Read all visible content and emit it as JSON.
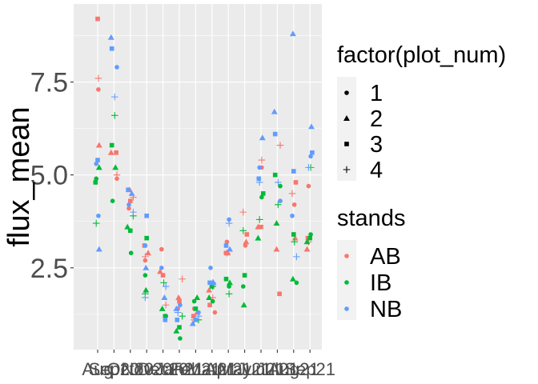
{
  "chart_data": {
    "type": "scatter",
    "ylabel": "flux_mean",
    "ylim": [
      0.3,
      9.6
    ],
    "yticks": [
      2.5,
      5.0,
      7.5
    ],
    "ytick_labels": [
      "2.5",
      "5.0",
      "7.5"
    ],
    "xticks": [
      "Aug-20",
      "Sep-20",
      "Oct-20",
      "Nov-20",
      "Dec-20",
      "Jan-21",
      "Feb-21",
      "Mar-21",
      "Apr-21",
      "May-21",
      "Jun-21",
      "Jul-21",
      "Aug-21",
      "Sep-21"
    ],
    "xtick_labels": [
      "Aug",
      "Sep20",
      "Oct20",
      "Nov20",
      "Dec20",
      "Jan21",
      "Feb21",
      "Mar21",
      "Apr21",
      "May21",
      "Jun21",
      "Jul21",
      "Aug21",
      "Sep21"
    ],
    "grid": true,
    "background": "#ebebeb",
    "legends": [
      {
        "title": "factor(plot_num)",
        "entries": [
          {
            "label": "1",
            "shape": "circle"
          },
          {
            "label": "2",
            "shape": "triangle"
          },
          {
            "label": "3",
            "shape": "square"
          },
          {
            "label": "4",
            "shape": "plus"
          }
        ]
      },
      {
        "title": "stands",
        "entries": [
          {
            "label": "AB",
            "color": "#f8766d"
          },
          {
            "label": "IB",
            "color": "#00ba38"
          },
          {
            "label": "NB",
            "color": "#619cff"
          }
        ]
      }
    ],
    "series": [
      {
        "name": "AB",
        "color": "#f8766d",
        "points": [
          {
            "x": 0,
            "y": 9.2,
            "plot": 3
          },
          {
            "x": 0,
            "y": 7.6,
            "plot": 4
          },
          {
            "x": 0,
            "y": 7.3,
            "plot": 1
          },
          {
            "x": 0,
            "y": 5.8,
            "plot": 2
          },
          {
            "x": 1,
            "y": 5.6,
            "plot": 3
          },
          {
            "x": 1,
            "y": 5.0,
            "plot": 4
          },
          {
            "x": 1,
            "y": 4.9,
            "plot": 1
          },
          {
            "x": 1,
            "y": 5.6,
            "plot": 2
          },
          {
            "x": 2,
            "y": 4.4,
            "plot": 4
          },
          {
            "x": 2,
            "y": 4.3,
            "plot": 3
          },
          {
            "x": 2,
            "y": 4.1,
            "plot": 1
          },
          {
            "x": 2,
            "y": 4.6,
            "plot": 2
          },
          {
            "x": 3,
            "y": 2.8,
            "plot": 4
          },
          {
            "x": 3,
            "y": 2.7,
            "plot": 1
          },
          {
            "x": 3,
            "y": 3.1,
            "plot": 3
          },
          {
            "x": 3,
            "y": 2.9,
            "plot": 2
          },
          {
            "x": 4,
            "y": 3.0,
            "plot": 1
          },
          {
            "x": 4,
            "y": 1.5,
            "plot": 4
          },
          {
            "x": 4,
            "y": 2.3,
            "plot": 3
          },
          {
            "x": 4,
            "y": 2.4,
            "plot": 2
          },
          {
            "x": 5,
            "y": 2.2,
            "plot": 4
          },
          {
            "x": 5,
            "y": 1.6,
            "plot": 3
          },
          {
            "x": 5,
            "y": 1.4,
            "plot": 1
          },
          {
            "x": 5,
            "y": 1.7,
            "plot": 2
          },
          {
            "x": 6,
            "y": 1.1,
            "plot": 4
          },
          {
            "x": 6,
            "y": 1.4,
            "plot": 1
          },
          {
            "x": 6,
            "y": 1.2,
            "plot": 3
          },
          {
            "x": 6,
            "y": 1.3,
            "plot": 2
          },
          {
            "x": 7,
            "y": 1.7,
            "plot": 4
          },
          {
            "x": 7,
            "y": 1.5,
            "plot": 3
          },
          {
            "x": 7,
            "y": 1.3,
            "plot": 1
          },
          {
            "x": 7,
            "y": 1.9,
            "plot": 2
          },
          {
            "x": 8,
            "y": 2.9,
            "plot": 3
          },
          {
            "x": 8,
            "y": 2.9,
            "plot": 4
          },
          {
            "x": 8,
            "y": 3.2,
            "plot": 1
          },
          {
            "x": 8,
            "y": 2.9,
            "plot": 2
          },
          {
            "x": 9,
            "y": 4.0,
            "plot": 4
          },
          {
            "x": 9,
            "y": 3.4,
            "plot": 3
          },
          {
            "x": 9,
            "y": 3.1,
            "plot": 1
          },
          {
            "x": 9,
            "y": 3.2,
            "plot": 2
          },
          {
            "x": 10,
            "y": 5.4,
            "plot": 4
          },
          {
            "x": 10,
            "y": 5.2,
            "plot": 1
          },
          {
            "x": 10,
            "y": 3.6,
            "plot": 3
          },
          {
            "x": 10,
            "y": 3.6,
            "plot": 2
          },
          {
            "x": 11,
            "y": 5.8,
            "plot": 4
          },
          {
            "x": 11,
            "y": 4.3,
            "plot": 1
          },
          {
            "x": 11,
            "y": 1.8,
            "plot": 3
          },
          {
            "x": 11,
            "y": 3.0,
            "plot": 2
          },
          {
            "x": 12,
            "y": 4.5,
            "plot": 4
          },
          {
            "x": 12,
            "y": 4.8,
            "plot": 3
          },
          {
            "x": 12,
            "y": 4.2,
            "plot": 1
          },
          {
            "x": 12,
            "y": 3.3,
            "plot": 2
          },
          {
            "x": 13,
            "y": 4.7,
            "plot": 1
          },
          {
            "x": 13,
            "y": 3.3,
            "plot": 3
          },
          {
            "x": 13,
            "y": 3.2,
            "plot": 4
          },
          {
            "x": 13,
            "y": 3.0,
            "plot": 2
          }
        ]
      },
      {
        "name": "IB",
        "color": "#00ba38",
        "points": [
          {
            "x": 0,
            "y": 5.2,
            "plot": 2
          },
          {
            "x": 0,
            "y": 4.9,
            "plot": 1
          },
          {
            "x": 0,
            "y": 4.8,
            "plot": 3
          },
          {
            "x": 0,
            "y": 3.7,
            "plot": 4
          },
          {
            "x": 1,
            "y": 6.6,
            "plot": 4
          },
          {
            "x": 1,
            "y": 5.8,
            "plot": 3
          },
          {
            "x": 1,
            "y": 5.2,
            "plot": 2
          },
          {
            "x": 1,
            "y": 4.3,
            "plot": 1
          },
          {
            "x": 2,
            "y": 3.9,
            "plot": 4
          },
          {
            "x": 2,
            "y": 3.5,
            "plot": 3
          },
          {
            "x": 2,
            "y": 3.6,
            "plot": 2
          },
          {
            "x": 2,
            "y": 2.9,
            "plot": 1
          },
          {
            "x": 3,
            "y": 3.3,
            "plot": 3
          },
          {
            "x": 3,
            "y": 2.3,
            "plot": 1
          },
          {
            "x": 3,
            "y": 1.9,
            "plot": 2
          },
          {
            "x": 3,
            "y": 1.8,
            "plot": 4
          },
          {
            "x": 4,
            "y": 2.1,
            "plot": 4
          },
          {
            "x": 4,
            "y": 1.4,
            "plot": 2
          },
          {
            "x": 4,
            "y": 1.2,
            "plot": 1
          },
          {
            "x": 4,
            "y": 1.2,
            "plot": 3
          },
          {
            "x": 5,
            "y": 1.2,
            "plot": 4
          },
          {
            "x": 5,
            "y": 0.9,
            "plot": 3
          },
          {
            "x": 5,
            "y": 0.8,
            "plot": 2
          },
          {
            "x": 5,
            "y": 0.6,
            "plot": 1
          },
          {
            "x": 6,
            "y": 1.7,
            "plot": 2
          },
          {
            "x": 6,
            "y": 1.6,
            "plot": 1
          },
          {
            "x": 6,
            "y": 1.1,
            "plot": 4
          },
          {
            "x": 6,
            "y": 1.4,
            "plot": 3
          },
          {
            "x": 7,
            "y": 2.0,
            "plot": 4
          },
          {
            "x": 7,
            "y": 1.6,
            "plot": 1
          },
          {
            "x": 7,
            "y": 2.0,
            "plot": 3
          },
          {
            "x": 7,
            "y": 1.7,
            "plot": 2
          },
          {
            "x": 8,
            "y": 2.2,
            "plot": 3
          },
          {
            "x": 8,
            "y": 2.1,
            "plot": 2
          },
          {
            "x": 8,
            "y": 1.8,
            "plot": 4
          },
          {
            "x": 8,
            "y": 2.0,
            "plot": 1
          },
          {
            "x": 9,
            "y": 3.5,
            "plot": 4
          },
          {
            "x": 9,
            "y": 2.0,
            "plot": 1
          },
          {
            "x": 9,
            "y": 1.5,
            "plot": 2
          },
          {
            "x": 9,
            "y": 2.3,
            "plot": 3
          },
          {
            "x": 10,
            "y": 4.5,
            "plot": 3
          },
          {
            "x": 10,
            "y": 4.4,
            "plot": 1
          },
          {
            "x": 10,
            "y": 3.8,
            "plot": 4
          },
          {
            "x": 10,
            "y": 3.3,
            "plot": 2
          },
          {
            "x": 11,
            "y": 5.0,
            "plot": 3
          },
          {
            "x": 11,
            "y": 4.7,
            "plot": 1
          },
          {
            "x": 11,
            "y": 4.2,
            "plot": 4
          },
          {
            "x": 11,
            "y": 3.7,
            "plot": 2
          },
          {
            "x": 12,
            "y": 3.4,
            "plot": 3
          },
          {
            "x": 12,
            "y": 3.2,
            "plot": 4
          },
          {
            "x": 12,
            "y": 2.2,
            "plot": 2
          },
          {
            "x": 12,
            "y": 2.1,
            "plot": 1
          },
          {
            "x": 13,
            "y": 5.2,
            "plot": 4
          },
          {
            "x": 13,
            "y": 3.4,
            "plot": 1
          },
          {
            "x": 13,
            "y": 3.3,
            "plot": 3
          },
          {
            "x": 13,
            "y": 3.2,
            "plot": 2
          }
        ]
      },
      {
        "name": "NB",
        "color": "#619cff",
        "points": [
          {
            "x": 0,
            "y": 5.4,
            "plot": 3
          },
          {
            "x": 0,
            "y": 5.3,
            "plot": 1
          },
          {
            "x": 0,
            "y": 3.9,
            "plot": 1
          },
          {
            "x": 0,
            "y": 3.0,
            "plot": 2
          },
          {
            "x": 1,
            "y": 8.7,
            "plot": 2
          },
          {
            "x": 1,
            "y": 8.4,
            "plot": 3
          },
          {
            "x": 1,
            "y": 7.9,
            "plot": 1
          },
          {
            "x": 1,
            "y": 7.1,
            "plot": 4
          },
          {
            "x": 2,
            "y": 4.6,
            "plot": 3
          },
          {
            "x": 2,
            "y": 4.5,
            "plot": 2
          },
          {
            "x": 2,
            "y": 4.2,
            "plot": 1
          },
          {
            "x": 2,
            "y": 4.0,
            "plot": 4
          },
          {
            "x": 3,
            "y": 3.9,
            "plot": 3
          },
          {
            "x": 3,
            "y": 3.1,
            "plot": 1
          },
          {
            "x": 3,
            "y": 2.5,
            "plot": 2
          },
          {
            "x": 3,
            "y": 1.7,
            "plot": 4
          },
          {
            "x": 4,
            "y": 2.5,
            "plot": 1
          },
          {
            "x": 4,
            "y": 2.0,
            "plot": 4
          },
          {
            "x": 4,
            "y": 1.7,
            "plot": 2
          },
          {
            "x": 4,
            "y": 1.1,
            "plot": 3
          },
          {
            "x": 5,
            "y": 1.5,
            "plot": 1
          },
          {
            "x": 5,
            "y": 1.3,
            "plot": 4
          },
          {
            "x": 5,
            "y": 1.4,
            "plot": 2
          },
          {
            "x": 5,
            "y": 1.1,
            "plot": 3
          },
          {
            "x": 6,
            "y": 1.3,
            "plot": 1
          },
          {
            "x": 6,
            "y": 1.0,
            "plot": 2
          },
          {
            "x": 6,
            "y": 1.2,
            "plot": 4
          },
          {
            "x": 6,
            "y": 1.1,
            "plot": 3
          },
          {
            "x": 7,
            "y": 2.5,
            "plot": 1
          },
          {
            "x": 7,
            "y": 2.1,
            "plot": 3
          },
          {
            "x": 7,
            "y": 2.1,
            "plot": 2
          },
          {
            "x": 7,
            "y": 2.1,
            "plot": 4
          },
          {
            "x": 8,
            "y": 3.1,
            "plot": 3
          },
          {
            "x": 8,
            "y": 3.0,
            "plot": 2
          },
          {
            "x": 8,
            "y": 3.7,
            "plot": 4
          },
          {
            "x": 8,
            "y": 3.8,
            "plot": 1
          },
          {
            "x": 10,
            "y": 6.0,
            "plot": 2
          },
          {
            "x": 10,
            "y": 5.2,
            "plot": 1
          },
          {
            "x": 10,
            "y": 4.9,
            "plot": 3
          },
          {
            "x": 10,
            "y": 4.8,
            "plot": 4
          },
          {
            "x": 11,
            "y": 6.7,
            "plot": 2
          },
          {
            "x": 11,
            "y": 6.1,
            "plot": 3
          },
          {
            "x": 11,
            "y": 4.3,
            "plot": 1
          },
          {
            "x": 11,
            "y": 4.8,
            "plot": 4
          },
          {
            "x": 12,
            "y": 8.8,
            "plot": 2
          },
          {
            "x": 12,
            "y": 5.1,
            "plot": 3
          },
          {
            "x": 12,
            "y": 3.9,
            "plot": 1
          },
          {
            "x": 12,
            "y": 2.8,
            "plot": 4
          },
          {
            "x": 13,
            "y": 6.3,
            "plot": 2
          },
          {
            "x": 13,
            "y": 5.6,
            "plot": 3
          },
          {
            "x": 13,
            "y": 5.5,
            "plot": 1
          },
          {
            "x": 13,
            "y": 5.2,
            "plot": 4
          }
        ]
      }
    ]
  }
}
